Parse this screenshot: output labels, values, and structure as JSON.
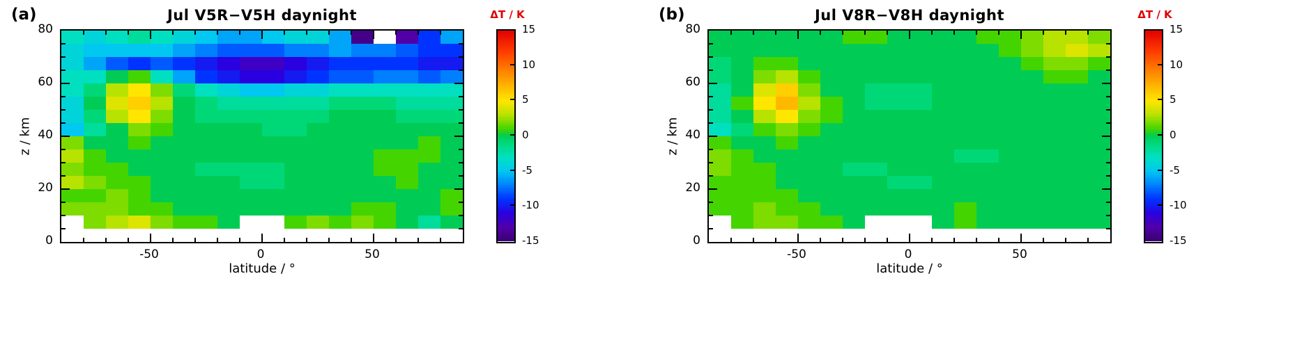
{
  "colorbar": {
    "title": "ΔT / K",
    "ticks": [
      15,
      10,
      5,
      0,
      -5,
      -10,
      -15
    ],
    "max": 15,
    "min": -15
  },
  "color_scale": {
    "stops": [
      [
        -15,
        "#38006e"
      ],
      [
        -13,
        "#5100a8"
      ],
      [
        -11,
        "#2a00e0"
      ],
      [
        -9,
        "#0033ff"
      ],
      [
        -7,
        "#0080ff"
      ],
      [
        -5,
        "#00c8f0"
      ],
      [
        -3,
        "#00e0c0"
      ],
      [
        -1,
        "#00d878"
      ],
      [
        0,
        "#00cc55"
      ],
      [
        1,
        "#44d500"
      ],
      [
        3,
        "#b8e200"
      ],
      [
        5,
        "#ffe600"
      ],
      [
        7,
        "#ffb800"
      ],
      [
        9,
        "#ff8800"
      ],
      [
        12,
        "#ff3c00"
      ],
      [
        15,
        "#e10000"
      ]
    ],
    "no_data_color": "#ffffff"
  },
  "chart_data": [
    {
      "type": "heatmap",
      "panel_label": "(a)",
      "title": "Jul V5R−V5H daynight",
      "xlabel": "latitude / °",
      "ylabel": "z / km",
      "units": "K",
      "xlim": [
        -90,
        90
      ],
      "ylim": [
        0,
        80
      ],
      "xticks": [
        -50,
        0,
        50
      ],
      "yticks": [
        0,
        20,
        40,
        60,
        80
      ],
      "x_minor_step": 10,
      "y_minor_step": 5,
      "lat_centers": [
        -85,
        -75,
        -65,
        -55,
        -45,
        -35,
        -25,
        -15,
        -5,
        5,
        15,
        25,
        35,
        45,
        55,
        65,
        75,
        85
      ],
      "z_centers": [
        2.5,
        7.5,
        12.5,
        17.5,
        22.5,
        27.5,
        32.5,
        37.5,
        42.5,
        47.5,
        52.5,
        57.5,
        62.5,
        67.5,
        72.5,
        77.5
      ],
      "values": [
        [
          null,
          null,
          null,
          null,
          null,
          null,
          null,
          null,
          null,
          null,
          null,
          null,
          null,
          null,
          null,
          null,
          null,
          null
        ],
        [
          null,
          2,
          3,
          4,
          2,
          1,
          1,
          0,
          null,
          null,
          1,
          2,
          1,
          2,
          1,
          0,
          -2,
          0
        ],
        [
          2,
          2,
          2,
          1,
          1,
          0,
          0,
          0,
          0,
          0,
          0,
          0,
          0,
          1,
          1,
          0,
          0,
          1
        ],
        [
          1,
          1,
          2,
          1,
          0,
          0,
          0,
          0,
          0,
          0,
          0,
          0,
          0,
          0,
          0,
          0,
          0,
          1
        ],
        [
          3,
          2,
          1,
          1,
          0,
          0,
          0,
          0,
          -1,
          -1,
          0,
          0,
          0,
          0,
          0,
          1,
          0,
          0
        ],
        [
          2,
          1,
          1,
          0,
          0,
          0,
          -1,
          -1,
          -1,
          -1,
          0,
          0,
          0,
          0,
          1,
          1,
          0,
          0
        ],
        [
          3,
          1,
          0,
          0,
          0,
          0,
          0,
          0,
          0,
          0,
          0,
          0,
          0,
          0,
          1,
          1,
          1,
          0
        ],
        [
          2,
          0,
          0,
          1,
          0,
          0,
          0,
          0,
          0,
          0,
          0,
          0,
          0,
          0,
          0,
          0,
          1,
          0
        ],
        [
          -5,
          -2,
          0,
          2,
          1,
          0,
          0,
          0,
          0,
          -1,
          -1,
          0,
          0,
          0,
          0,
          0,
          0,
          0
        ],
        [
          -4,
          -1,
          3,
          5,
          2,
          0,
          -1,
          -1,
          -1,
          -1,
          -1,
          -1,
          0,
          0,
          0,
          -1,
          -1,
          -1
        ],
        [
          -4,
          0,
          4,
          6,
          3,
          0,
          -1,
          -2,
          -2,
          -2,
          -2,
          -2,
          -1,
          -1,
          -1,
          -2,
          -2,
          -2
        ],
        [
          -3,
          -1,
          3,
          5,
          2,
          -1,
          -3,
          -4,
          -5,
          -5,
          -4,
          -4,
          -3,
          -3,
          -3,
          -3,
          -3,
          -3
        ],
        [
          -3,
          -3,
          0,
          1,
          -3,
          -6,
          -9,
          -10,
          -11,
          -11,
          -10,
          -9,
          -8,
          -8,
          -7,
          -7,
          -8,
          -7
        ],
        [
          -4,
          -6,
          -8,
          -9,
          -8,
          -9,
          -10,
          -11,
          -12,
          -12,
          -11,
          -10,
          -9,
          -9,
          -9,
          -9,
          -10,
          -10
        ],
        [
          -4,
          -5,
          -5,
          -5,
          -5,
          -6,
          -7,
          -8,
          -8,
          -8,
          -7,
          -7,
          -6,
          -7,
          -7,
          -8,
          -9,
          -9
        ],
        [
          -3,
          -4,
          -3,
          -2,
          -3,
          -4,
          -5,
          -6,
          -6,
          -5,
          -4,
          -4,
          -6,
          -14,
          null,
          -13,
          -9,
          -6
        ]
      ]
    },
    {
      "type": "heatmap",
      "panel_label": "(b)",
      "title": "Jul V8R−V8H daynight",
      "xlabel": "latitude / °",
      "ylabel": "z / km",
      "units": "K",
      "xlim": [
        -90,
        90
      ],
      "ylim": [
        0,
        80
      ],
      "xticks": [
        -50,
        0,
        50
      ],
      "yticks": [
        0,
        20,
        40,
        60,
        80
      ],
      "x_minor_step": 10,
      "y_minor_step": 5,
      "lat_centers": [
        -85,
        -75,
        -65,
        -55,
        -45,
        -35,
        -25,
        -15,
        -5,
        5,
        15,
        25,
        35,
        45,
        55,
        65,
        75,
        85
      ],
      "z_centers": [
        2.5,
        7.5,
        12.5,
        17.5,
        22.5,
        27.5,
        32.5,
        37.5,
        42.5,
        47.5,
        52.5,
        57.5,
        62.5,
        67.5,
        72.5,
        77.5
      ],
      "values": [
        [
          null,
          null,
          null,
          null,
          null,
          null,
          null,
          null,
          null,
          null,
          null,
          null,
          null,
          null,
          null,
          null,
          null,
          null
        ],
        [
          null,
          1,
          2,
          2,
          1,
          1,
          0,
          null,
          null,
          null,
          0,
          1,
          0,
          0,
          0,
          0,
          0,
          0
        ],
        [
          1,
          1,
          2,
          1,
          1,
          0,
          0,
          0,
          0,
          0,
          0,
          1,
          0,
          0,
          0,
          0,
          0,
          0
        ],
        [
          1,
          1,
          1,
          1,
          0,
          0,
          0,
          0,
          0,
          0,
          0,
          0,
          0,
          0,
          0,
          0,
          0,
          0
        ],
        [
          1,
          1,
          1,
          0,
          0,
          0,
          0,
          0,
          -1,
          -1,
          0,
          0,
          0,
          0,
          0,
          0,
          0,
          0
        ],
        [
          2,
          1,
          1,
          0,
          0,
          0,
          -1,
          -1,
          0,
          0,
          0,
          0,
          0,
          0,
          0,
          0,
          0,
          0
        ],
        [
          2,
          1,
          0,
          0,
          0,
          0,
          0,
          0,
          0,
          0,
          0,
          -1,
          -1,
          0,
          0,
          0,
          0,
          0
        ],
        [
          1,
          0,
          0,
          1,
          0,
          0,
          0,
          0,
          0,
          0,
          0,
          0,
          0,
          0,
          0,
          0,
          0,
          0
        ],
        [
          -3,
          -1,
          1,
          2,
          1,
          0,
          0,
          0,
          0,
          0,
          0,
          0,
          0,
          0,
          0,
          0,
          0,
          0
        ],
        [
          -2,
          0,
          3,
          5,
          2,
          1,
          0,
          0,
          0,
          0,
          0,
          0,
          0,
          0,
          0,
          0,
          0,
          0
        ],
        [
          -2,
          1,
          5,
          7,
          3,
          1,
          0,
          -1,
          -1,
          -1,
          0,
          0,
          0,
          0,
          0,
          0,
          0,
          0
        ],
        [
          -2,
          0,
          4,
          6,
          2,
          0,
          0,
          -1,
          -1,
          -1,
          0,
          0,
          0,
          0,
          0,
          0,
          0,
          0
        ],
        [
          -1,
          0,
          2,
          3,
          1,
          0,
          0,
          0,
          0,
          0,
          0,
          0,
          0,
          0,
          0,
          1,
          1,
          0
        ],
        [
          -1,
          0,
          1,
          1,
          0,
          0,
          0,
          0,
          0,
          0,
          0,
          0,
          0,
          0,
          1,
          2,
          2,
          1
        ],
        [
          0,
          0,
          0,
          0,
          0,
          0,
          0,
          0,
          0,
          0,
          0,
          0,
          0,
          1,
          2,
          3,
          4,
          3
        ],
        [
          0,
          0,
          0,
          0,
          0,
          0,
          1,
          1,
          0,
          0,
          0,
          0,
          1,
          1,
          2,
          3,
          3,
          2
        ]
      ]
    }
  ]
}
